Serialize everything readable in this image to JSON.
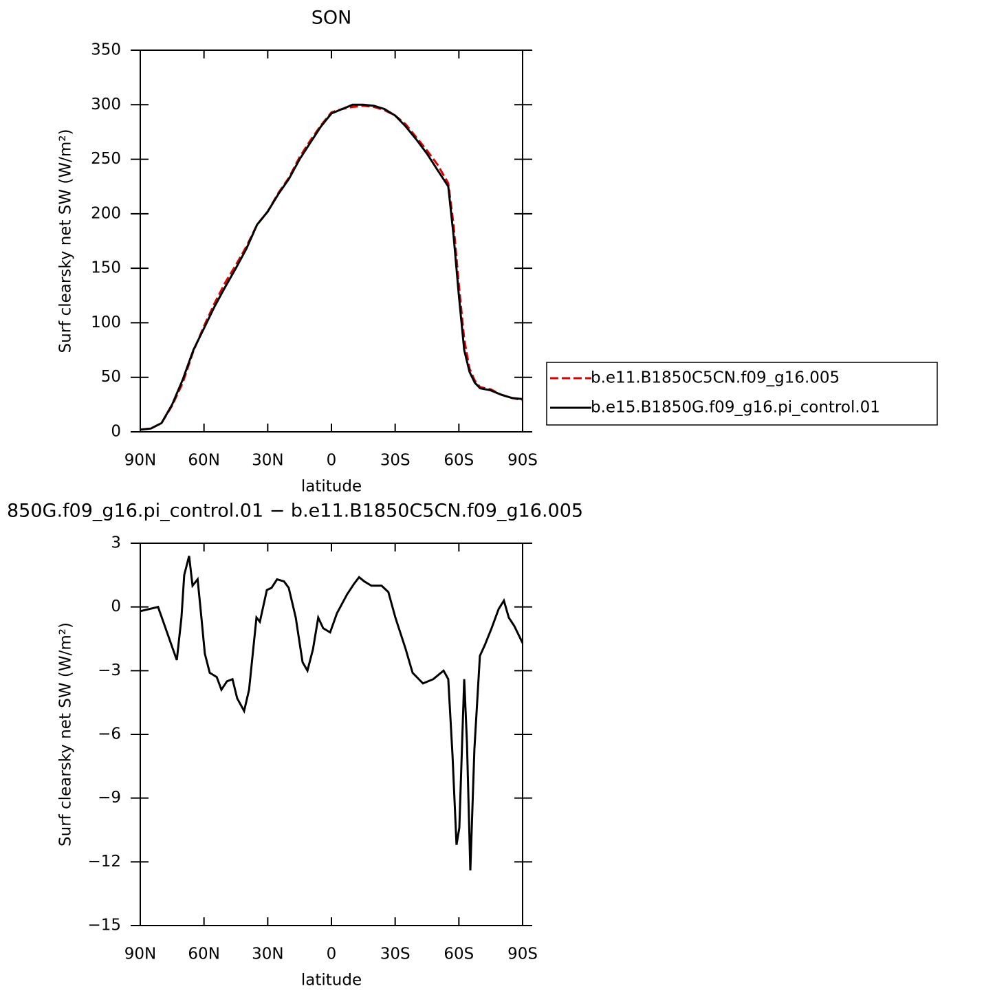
{
  "chart_data": [
    {
      "type": "line",
      "title": "SON",
      "xlabel": "latitude",
      "ylabel": "Surf clearsky net SW (W/m²)",
      "x": [
        90,
        85,
        80,
        75,
        70,
        65,
        60,
        55,
        50,
        45,
        40,
        35,
        30,
        25,
        20,
        15,
        10,
        5,
        0,
        -5,
        -10,
        -15,
        -20,
        -25,
        -30,
        -35,
        -40,
        -45,
        -50,
        -55,
        -57.5,
        -60,
        -62.5,
        -65,
        -67.5,
        -70,
        -75,
        -80,
        -85,
        -90
      ],
      "xlim": [
        90,
        -90
      ],
      "xticks": [
        {
          "value": 90,
          "label": "90N"
        },
        {
          "value": 60,
          "label": "60N"
        },
        {
          "value": 30,
          "label": "30N"
        },
        0,
        {
          "value": -30,
          "label": "30S"
        },
        {
          "value": -60,
          "label": "60S"
        },
        {
          "value": -90,
          "label": "90S"
        }
      ],
      "ylim": [
        0,
        350
      ],
      "yticks": [
        0,
        50,
        100,
        150,
        200,
        250,
        300,
        350
      ],
      "legend": "right",
      "series": [
        {
          "name": "b.e11.B1850C5CN.f09_g16.005",
          "color": "#e00000",
          "dash": true,
          "values": [
            2,
            3,
            8,
            24,
            45,
            74,
            97,
            118,
            137,
            153,
            170,
            190,
            202,
            219,
            233,
            252,
            267,
            281,
            293,
            296,
            298,
            299,
            298,
            295,
            290,
            282,
            270,
            258,
            245,
            228,
            190,
            135,
            85,
            58,
            47,
            41,
            39,
            34,
            31,
            29
          ]
        },
        {
          "name": "b.e15.B1850G.f09_g16.pi_control.01",
          "color": "#000000",
          "dash": false,
          "values": [
            2,
            3,
            8,
            25,
            48,
            75,
            95,
            115,
            133,
            150,
            168,
            190,
            202,
            218,
            232,
            250,
            265,
            280,
            292,
            296,
            300,
            300,
            299,
            296,
            290,
            280,
            268,
            255,
            240,
            225,
            180,
            125,
            75,
            55,
            45,
            40,
            38,
            34,
            31,
            30
          ]
        }
      ]
    },
    {
      "type": "line",
      "title": "850G.f09_g16.pi_control.01 − b.e11.B1850C5CN.f09_g16.005",
      "xlabel": "latitude",
      "ylabel": "Surf clearsky net SW (W/m²)",
      "x": [
        90,
        81.6,
        76.7,
        72.8,
        70.6,
        69.3,
        67,
        65.4,
        63,
        61.5,
        59.6,
        57.3,
        54,
        51.8,
        49.2,
        46.6,
        44.4,
        41.1,
        38.8,
        35.3,
        33.7,
        30.4,
        28.2,
        25.6,
        22.3,
        20.1,
        16.8,
        13.6,
        11.3,
        8.7,
        6.2,
        3.9,
        0.6,
        -2.6,
        -7.4,
        -10.7,
        -13,
        -15.5,
        -18.8,
        -23.6,
        -26.8,
        -30.1,
        -35,
        -38.2,
        -43.1,
        -47.9,
        -52.8,
        -55,
        -57,
        -58.9,
        -60.2,
        -62.5,
        -63.8,
        -65.4,
        -67.3,
        -69.9,
        -72.2,
        -75.4,
        -78.7,
        -81.2,
        -83.5,
        -86.1,
        -90
      ],
      "xlim": [
        90,
        -90
      ],
      "xticks": [
        {
          "value": 90,
          "label": "90N"
        },
        {
          "value": 60,
          "label": "60N"
        },
        {
          "value": 30,
          "label": "30N"
        },
        0,
        {
          "value": -30,
          "label": "30S"
        },
        {
          "value": -60,
          "label": "60S"
        },
        {
          "value": -90,
          "label": "90S"
        }
      ],
      "ylim": [
        -15,
        3
      ],
      "yticks": [
        {
          "value": -15,
          "label": "−15"
        },
        {
          "value": -12,
          "label": "−12"
        },
        {
          "value": -9,
          "label": "−9"
        },
        {
          "value": -6,
          "label": "−6"
        },
        {
          "value": -3,
          "label": "−3"
        },
        0,
        3
      ],
      "series": [
        {
          "color": "#000000",
          "values": [
            -0.2,
            0,
            -1.4,
            -2.5,
            -0.5,
            1.5,
            2.4,
            1.0,
            1.3,
            -0.2,
            -2.2,
            -3.1,
            -3.3,
            -3.9,
            -3.5,
            -3.4,
            -4.3,
            -4.9,
            -3.9,
            -0.5,
            -0.7,
            0.8,
            0.9,
            1.3,
            1.2,
            0.9,
            -0.5,
            -2.6,
            -3.0,
            -2.0,
            -0.5,
            -1.0,
            -1.2,
            -0.3,
            0.6,
            1.1,
            1.4,
            1.2,
            1.0,
            1.0,
            0.7,
            -0.5,
            -2.0,
            -3.1,
            -3.6,
            -3.4,
            -3.0,
            -3.4,
            -7.0,
            -11.2,
            -10.4,
            -3.4,
            -6.4,
            -12.4,
            -6.7,
            -2.3,
            -1.8,
            -1.0,
            -0.1,
            0.3,
            -0.5,
            -0.9,
            -1.7
          ]
        }
      ]
    }
  ]
}
